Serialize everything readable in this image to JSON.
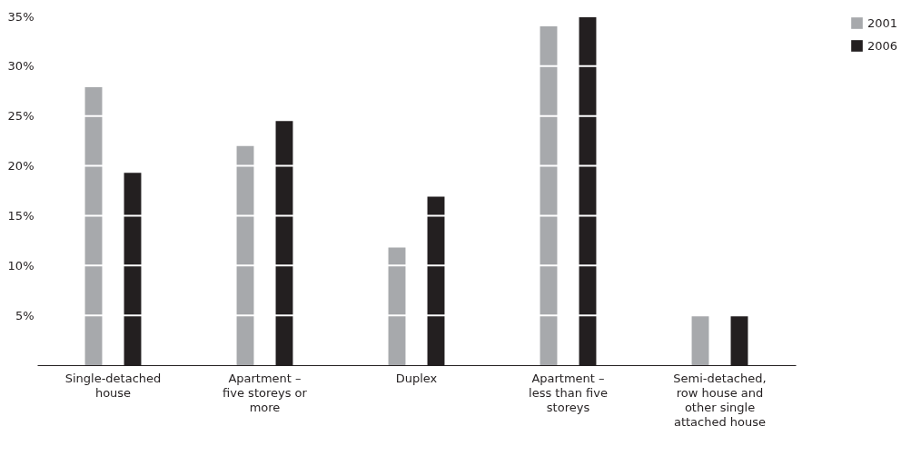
{
  "chart_data": {
    "type": "bar",
    "categories": [
      "Single-detached house",
      "Apartment – five storeys or more",
      "Duplex",
      "Apartment – less than five storeys",
      "Semi-detached, row house and other single attached house"
    ],
    "series": [
      {
        "name": "2001",
        "color": "#a7a9ac",
        "values": [
          27.9,
          22.0,
          11.8,
          34.0,
          5.0
        ]
      },
      {
        "name": "2006",
        "color": "#231f20",
        "values": [
          19.3,
          24.5,
          16.9,
          35.0,
          5.0
        ]
      }
    ],
    "ylim": [
      0,
      35
    ],
    "yticks": [
      {
        "value": 5,
        "label": "5%"
      },
      {
        "value": 10,
        "label": "10%"
      },
      {
        "value": 15,
        "label": "15%"
      },
      {
        "value": 20,
        "label": "20%"
      },
      {
        "value": 25,
        "label": "25%"
      },
      {
        "value": 30,
        "label": "30%"
      },
      {
        "value": 35,
        "label": "35%"
      }
    ],
    "grid": "y",
    "legend": "right"
  }
}
